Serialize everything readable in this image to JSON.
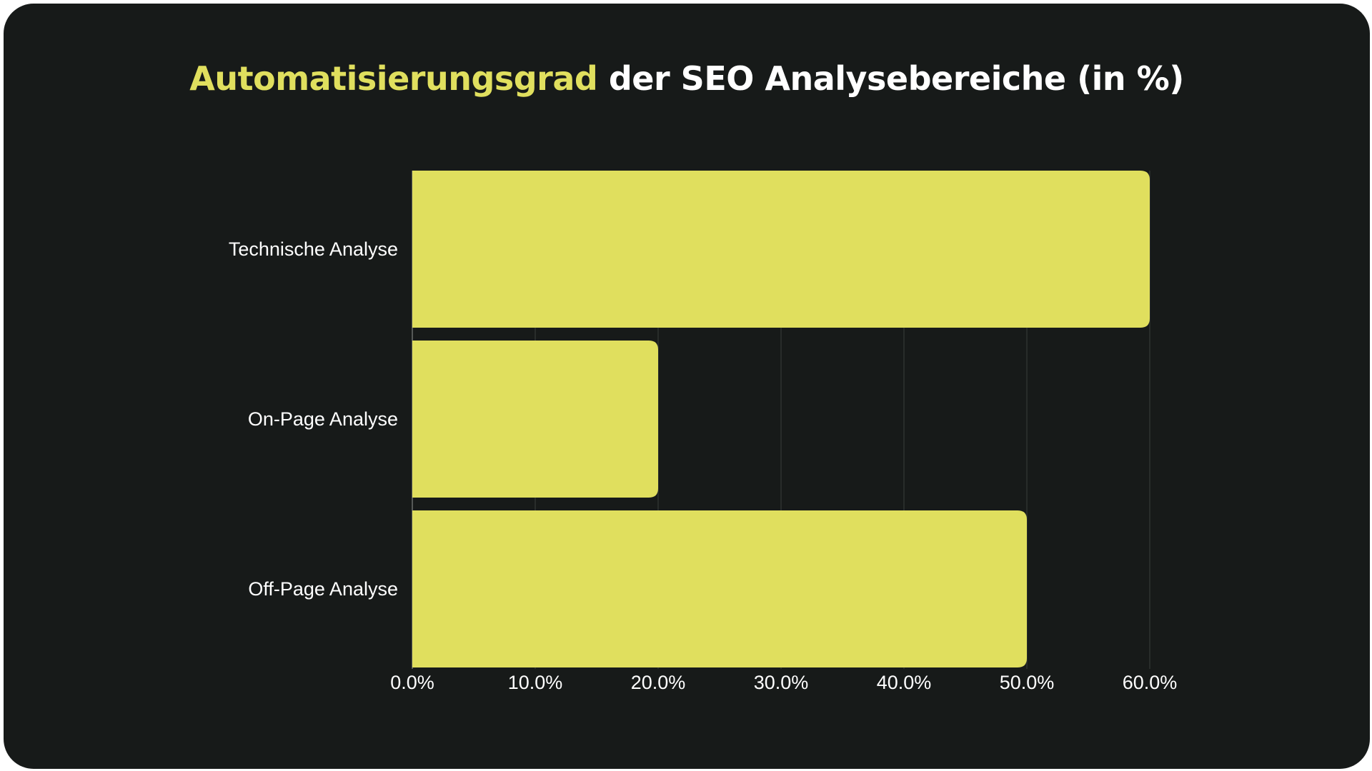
{
  "chart_data": {
    "type": "bar",
    "orientation": "horizontal",
    "title_highlight": "Automatisierungsgrad",
    "title_rest": " der SEO Analysebereiche (in %)",
    "categories": [
      "Technische Analyse",
      "On-Page Analyse",
      "Off-Page Analyse"
    ],
    "values": [
      60,
      20,
      50
    ],
    "xlim": [
      0,
      60
    ],
    "x_ticks": [
      0,
      10,
      20,
      30,
      40,
      50,
      60
    ],
    "x_tick_labels": [
      "0.0%",
      "10.0%",
      "20.0%",
      "30.0%",
      "40.0%",
      "50.0%",
      "60.0%"
    ],
    "grid": "vertical",
    "legend": "none",
    "bar_color": "#e0df5e",
    "background_color": "#171a19",
    "accent_color": "#e0df5e"
  }
}
